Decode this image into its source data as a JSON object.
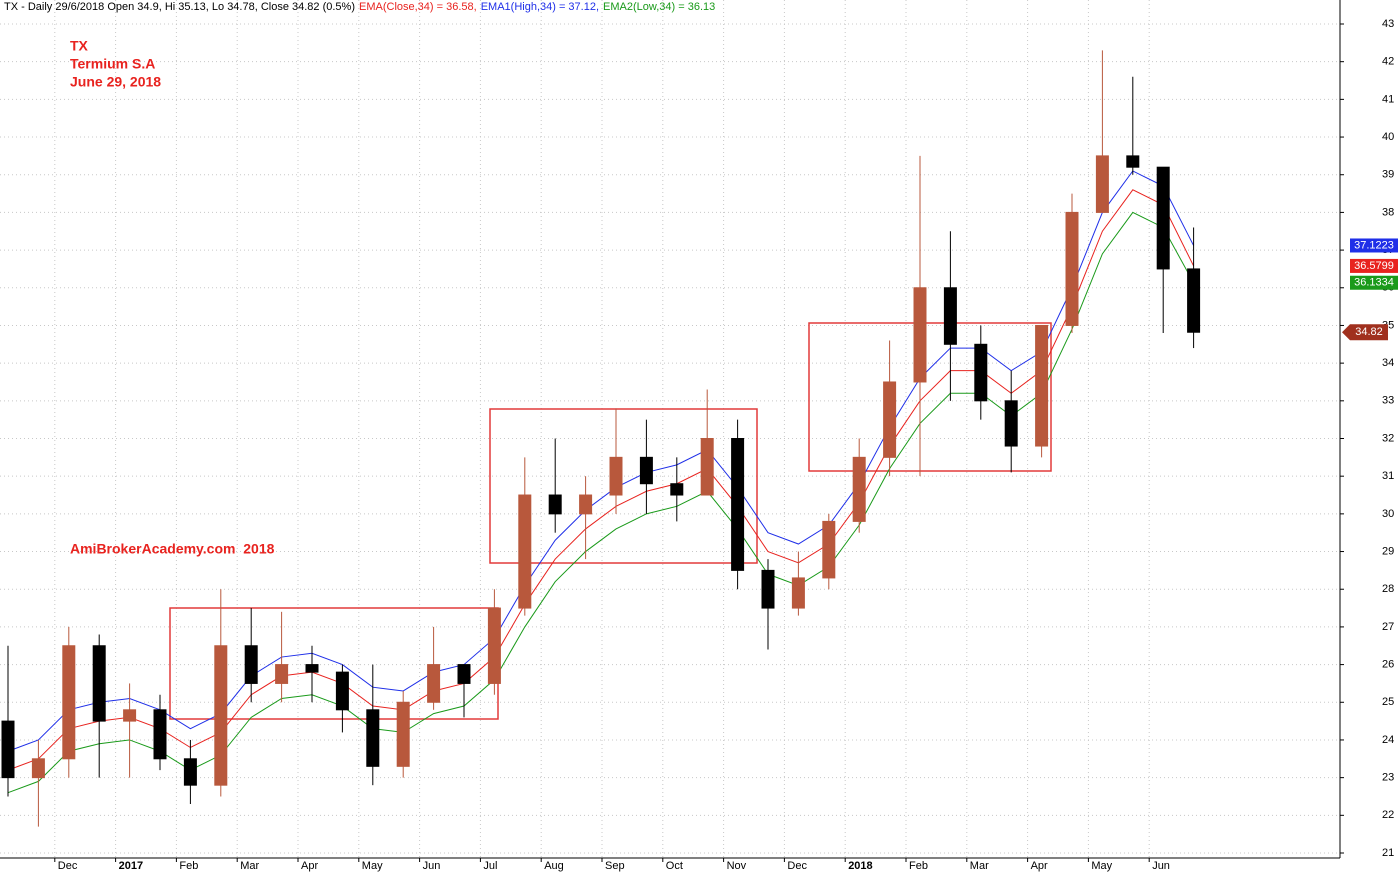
{
  "chart_data": {
    "type": "candlestick",
    "header": [
      {
        "text": "TX - Daily 29/6/2018 Open 34.9, Hi 35.13, Lo 34.78, Close 34.82 (0.5%)",
        "color": "#000000"
      },
      {
        "text": "EMA(Close,34) = 36.58,",
        "color": "#e8231f"
      },
      {
        "text": "EMA1(High,34) = 37.12,",
        "color": "#1f2fe8"
      },
      {
        "text": "EMA2(Low,34) = 36.13",
        "color": "#1a9a1a"
      }
    ],
    "annotations": [
      "TX",
      "Termium S.A",
      "June 29, 2018"
    ],
    "watermark": "AmiBrokerAcademy.com  2018",
    "categories": [
      null,
      null,
      "Dec",
      null,
      "2017",
      null,
      "Feb",
      null,
      "Mar",
      null,
      "Apr",
      null,
      "May",
      null,
      "Jun",
      null,
      "Jul",
      null,
      "Aug",
      null,
      "Sep",
      null,
      "Oct",
      null,
      "Nov",
      null,
      "Dec",
      null,
      "2018",
      null,
      "Feb",
      null,
      "Mar",
      null,
      "Apr",
      null,
      "May",
      null,
      "Jun",
      null
    ],
    "open": [
      24.5,
      23.0,
      23.5,
      26.5,
      24.5,
      24.8,
      23.5,
      22.8,
      26.5,
      25.5,
      26.0,
      25.8,
      24.8,
      23.3,
      25.0,
      26.0,
      25.5,
      27.5,
      30.5,
      30.0,
      30.5,
      31.5,
      30.8,
      30.5,
      32.0,
      28.5,
      27.5,
      28.3,
      29.8,
      31.5,
      33.5,
      36.0,
      34.5,
      33.0,
      31.8,
      35.0,
      38.0,
      39.5,
      39.2,
      36.5
    ],
    "high": [
      26.5,
      24.0,
      27.0,
      26.8,
      25.5,
      25.2,
      24.0,
      28.0,
      27.5,
      27.4,
      26.5,
      26.0,
      26.0,
      25.3,
      27.0,
      26.0,
      28.0,
      31.5,
      32.0,
      31.0,
      32.8,
      32.5,
      31.5,
      33.3,
      32.5,
      28.8,
      29.0,
      30.0,
      32.0,
      34.6,
      39.5,
      37.5,
      35.0,
      33.8,
      35.0,
      38.5,
      42.3,
      41.6,
      39.2,
      37.6
    ],
    "low": [
      22.5,
      21.7,
      23.0,
      23.0,
      23.0,
      23.2,
      22.3,
      22.5,
      25.0,
      25.0,
      25.0,
      24.2,
      22.8,
      23.0,
      24.8,
      24.6,
      25.2,
      27.3,
      29.5,
      28.8,
      30.0,
      30.0,
      29.8,
      30.5,
      28.0,
      26.4,
      27.3,
      28.0,
      29.5,
      31.0,
      31.0,
      33.0,
      32.5,
      31.1,
      31.5,
      34.8,
      38.0,
      39.0,
      34.8,
      34.4
    ],
    "close": [
      23.0,
      23.5,
      26.5,
      24.5,
      24.8,
      23.5,
      22.8,
      26.5,
      25.5,
      26.0,
      25.8,
      24.8,
      23.3,
      25.0,
      26.0,
      25.5,
      27.5,
      30.5,
      30.0,
      30.5,
      31.5,
      30.8,
      30.5,
      32.0,
      28.5,
      27.5,
      28.3,
      29.8,
      31.5,
      33.5,
      36.0,
      34.5,
      33.0,
      31.8,
      35.0,
      38.0,
      39.5,
      39.2,
      36.5,
      34.82
    ],
    "up_color": "#b8583c",
    "down_color": "#000000",
    "lines": [
      {
        "color": "#1f2fe8",
        "values": [
          23.7,
          24.0,
          24.8,
          25.0,
          25.1,
          24.8,
          24.3,
          24.7,
          25.7,
          26.2,
          26.3,
          26.0,
          25.4,
          25.3,
          25.8,
          26.0,
          26.7,
          28.1,
          29.3,
          30.1,
          30.7,
          31.1,
          31.3,
          31.7,
          30.7,
          29.5,
          29.2,
          29.7,
          30.8,
          32.3,
          33.6,
          34.4,
          34.4,
          33.8,
          34.3,
          36.0,
          38.0,
          39.1,
          38.7,
          37.12
        ]
      },
      {
        "color": "#e8231f",
        "values": [
          23.2,
          23.5,
          24.3,
          24.5,
          24.6,
          24.3,
          23.8,
          24.2,
          25.2,
          25.7,
          25.8,
          25.5,
          24.9,
          24.8,
          25.3,
          25.5,
          26.2,
          27.6,
          28.8,
          29.6,
          30.2,
          30.6,
          30.8,
          31.2,
          30.2,
          29.0,
          28.7,
          29.2,
          30.3,
          31.8,
          33.0,
          33.8,
          33.8,
          33.2,
          33.8,
          35.5,
          37.5,
          38.6,
          38.2,
          36.58
        ]
      },
      {
        "color": "#1a9a1a",
        "values": [
          22.6,
          22.9,
          23.7,
          23.9,
          24.0,
          23.7,
          23.2,
          23.6,
          24.6,
          25.1,
          25.2,
          24.9,
          24.3,
          24.2,
          24.7,
          24.9,
          25.6,
          27.0,
          28.2,
          29.0,
          29.6,
          30.0,
          30.2,
          30.6,
          29.6,
          28.4,
          28.1,
          28.6,
          29.7,
          31.2,
          32.4,
          33.2,
          33.2,
          32.6,
          33.2,
          34.9,
          36.9,
          38.0,
          37.6,
          36.13
        ]
      }
    ],
    "last_values": [
      {
        "value": 37.1223,
        "color": "#1f2fe8"
      },
      {
        "value": 36.5799,
        "color": "#e8231f"
      },
      {
        "value": 36.1334,
        "color": "#1a9a1a"
      },
      {
        "value": 34.82,
        "color": "#a0301e"
      }
    ],
    "ylim": [
      21,
      43
    ],
    "yticks": [
      21,
      22,
      23,
      24,
      25,
      26,
      27,
      28,
      29,
      30,
      31,
      32,
      33,
      34,
      35,
      36,
      37,
      38,
      39,
      40,
      41,
      42,
      43
    ],
    "grid": true
  }
}
